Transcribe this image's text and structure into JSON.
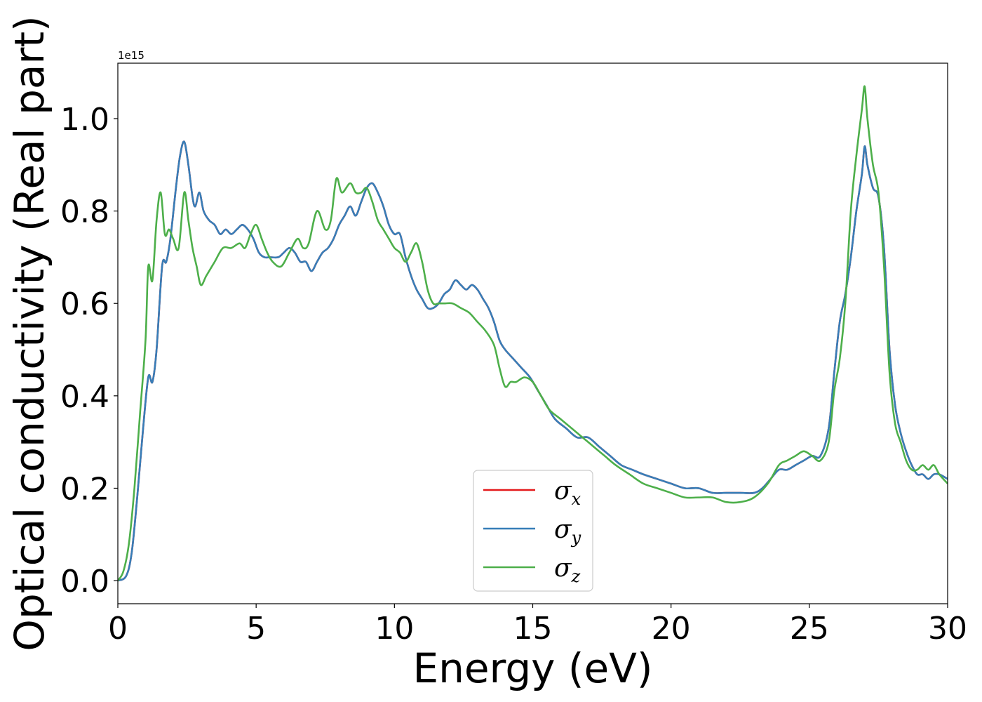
{
  "chart_data": {
    "type": "line",
    "xlabel": "Energy (eV)",
    "ylabel": "Optical conductivity (Real part)",
    "y_offset_text": "1e15",
    "y_scale": 1000000000000000.0,
    "xlim": [
      0,
      30
    ],
    "ylim": [
      -0.05,
      1.12
    ],
    "xticks": [
      0,
      5,
      10,
      15,
      20,
      25,
      30
    ],
    "yticks": [
      0.0,
      0.2,
      0.4,
      0.6,
      0.8,
      1.0
    ],
    "ytick_labels": [
      "0.0",
      "0.2",
      "0.4",
      "0.6",
      "0.8",
      "1.0"
    ],
    "grid": false,
    "legend_position": "bottom-center",
    "series": [
      {
        "name": "σx",
        "symbol": "σ",
        "sub": "x",
        "color": "#e41a1c",
        "x": [
          0,
          0.3,
          0.5,
          0.7,
          0.9,
          1.1,
          1.25,
          1.4,
          1.6,
          1.75,
          1.9,
          2.1,
          2.25,
          2.4,
          2.55,
          2.7,
          2.8,
          2.95,
          3.1,
          3.3,
          3.5,
          3.7,
          3.9,
          4.1,
          4.3,
          4.5,
          4.7,
          4.9,
          5.1,
          5.3,
          5.5,
          5.8,
          6.0,
          6.2,
          6.4,
          6.6,
          6.8,
          7.0,
          7.2,
          7.4,
          7.6,
          7.8,
          8.0,
          8.2,
          8.4,
          8.6,
          8.8,
          9.0,
          9.2,
          9.4,
          9.6,
          9.8,
          10.0,
          10.2,
          10.4,
          10.6,
          10.8,
          11.0,
          11.2,
          11.4,
          11.6,
          11.8,
          12.0,
          12.2,
          12.4,
          12.6,
          12.8,
          13.0,
          13.2,
          13.4,
          13.6,
          13.8,
          14.0,
          14.3,
          14.6,
          14.9,
          15.2,
          15.5,
          15.8,
          16.2,
          16.6,
          17.0,
          17.4,
          17.8,
          18.2,
          18.6,
          19.0,
          19.5,
          20.0,
          20.5,
          21.0,
          21.5,
          22.0,
          22.5,
          23.0,
          23.3,
          23.6,
          23.9,
          24.2,
          24.5,
          24.8,
          25.1,
          25.4,
          25.7,
          25.9,
          26.1,
          26.3,
          26.5,
          26.7,
          26.9,
          27.0,
          27.1,
          27.3,
          27.5,
          27.7,
          27.9,
          28.1,
          28.3,
          28.5,
          28.7,
          28.9,
          29.1,
          29.3,
          29.5,
          29.7,
          30.0
        ],
        "y": [
          0.0,
          0.01,
          0.06,
          0.18,
          0.32,
          0.44,
          0.43,
          0.5,
          0.68,
          0.69,
          0.74,
          0.85,
          0.92,
          0.95,
          0.9,
          0.83,
          0.81,
          0.84,
          0.8,
          0.78,
          0.77,
          0.75,
          0.76,
          0.75,
          0.76,
          0.77,
          0.76,
          0.74,
          0.71,
          0.7,
          0.7,
          0.7,
          0.71,
          0.72,
          0.71,
          0.69,
          0.69,
          0.67,
          0.69,
          0.71,
          0.72,
          0.74,
          0.77,
          0.79,
          0.81,
          0.79,
          0.82,
          0.85,
          0.86,
          0.84,
          0.81,
          0.77,
          0.75,
          0.75,
          0.7,
          0.66,
          0.63,
          0.61,
          0.59,
          0.59,
          0.6,
          0.62,
          0.63,
          0.65,
          0.64,
          0.63,
          0.64,
          0.63,
          0.61,
          0.59,
          0.56,
          0.52,
          0.5,
          0.48,
          0.46,
          0.44,
          0.41,
          0.38,
          0.35,
          0.33,
          0.31,
          0.31,
          0.29,
          0.27,
          0.25,
          0.24,
          0.23,
          0.22,
          0.21,
          0.2,
          0.2,
          0.19,
          0.19,
          0.19,
          0.19,
          0.2,
          0.22,
          0.24,
          0.24,
          0.25,
          0.26,
          0.27,
          0.27,
          0.33,
          0.45,
          0.56,
          0.62,
          0.7,
          0.8,
          0.88,
          0.94,
          0.9,
          0.85,
          0.83,
          0.72,
          0.5,
          0.38,
          0.32,
          0.28,
          0.25,
          0.23,
          0.23,
          0.22,
          0.23,
          0.23,
          0.22
        ]
      },
      {
        "name": "σy",
        "symbol": "σ",
        "sub": "y",
        "color": "#377eb8",
        "x": [
          0,
          0.3,
          0.5,
          0.7,
          0.9,
          1.1,
          1.25,
          1.4,
          1.6,
          1.75,
          1.9,
          2.1,
          2.25,
          2.4,
          2.55,
          2.7,
          2.8,
          2.95,
          3.1,
          3.3,
          3.5,
          3.7,
          3.9,
          4.1,
          4.3,
          4.5,
          4.7,
          4.9,
          5.1,
          5.3,
          5.5,
          5.8,
          6.0,
          6.2,
          6.4,
          6.6,
          6.8,
          7.0,
          7.2,
          7.4,
          7.6,
          7.8,
          8.0,
          8.2,
          8.4,
          8.6,
          8.8,
          9.0,
          9.2,
          9.4,
          9.6,
          9.8,
          10.0,
          10.2,
          10.4,
          10.6,
          10.8,
          11.0,
          11.2,
          11.4,
          11.6,
          11.8,
          12.0,
          12.2,
          12.4,
          12.6,
          12.8,
          13.0,
          13.2,
          13.4,
          13.6,
          13.8,
          14.0,
          14.3,
          14.6,
          14.9,
          15.2,
          15.5,
          15.8,
          16.2,
          16.6,
          17.0,
          17.4,
          17.8,
          18.2,
          18.6,
          19.0,
          19.5,
          20.0,
          20.5,
          21.0,
          21.5,
          22.0,
          22.5,
          23.0,
          23.3,
          23.6,
          23.9,
          24.2,
          24.5,
          24.8,
          25.1,
          25.4,
          25.7,
          25.9,
          26.1,
          26.3,
          26.5,
          26.7,
          26.9,
          27.0,
          27.1,
          27.3,
          27.5,
          27.7,
          27.9,
          28.1,
          28.3,
          28.5,
          28.7,
          28.9,
          29.1,
          29.3,
          29.5,
          29.7,
          30.0
        ],
        "y": [
          0.0,
          0.01,
          0.06,
          0.18,
          0.32,
          0.44,
          0.43,
          0.5,
          0.68,
          0.69,
          0.74,
          0.85,
          0.92,
          0.95,
          0.9,
          0.83,
          0.81,
          0.84,
          0.8,
          0.78,
          0.77,
          0.75,
          0.76,
          0.75,
          0.76,
          0.77,
          0.76,
          0.74,
          0.71,
          0.7,
          0.7,
          0.7,
          0.71,
          0.72,
          0.71,
          0.69,
          0.69,
          0.67,
          0.69,
          0.71,
          0.72,
          0.74,
          0.77,
          0.79,
          0.81,
          0.79,
          0.82,
          0.85,
          0.86,
          0.84,
          0.81,
          0.77,
          0.75,
          0.75,
          0.7,
          0.66,
          0.63,
          0.61,
          0.59,
          0.59,
          0.6,
          0.62,
          0.63,
          0.65,
          0.64,
          0.63,
          0.64,
          0.63,
          0.61,
          0.59,
          0.56,
          0.52,
          0.5,
          0.48,
          0.46,
          0.44,
          0.41,
          0.38,
          0.35,
          0.33,
          0.31,
          0.31,
          0.29,
          0.27,
          0.25,
          0.24,
          0.23,
          0.22,
          0.21,
          0.2,
          0.2,
          0.19,
          0.19,
          0.19,
          0.19,
          0.2,
          0.22,
          0.24,
          0.24,
          0.25,
          0.26,
          0.27,
          0.27,
          0.33,
          0.45,
          0.56,
          0.62,
          0.7,
          0.8,
          0.88,
          0.94,
          0.9,
          0.85,
          0.83,
          0.72,
          0.5,
          0.38,
          0.32,
          0.28,
          0.25,
          0.23,
          0.23,
          0.22,
          0.23,
          0.23,
          0.22
        ]
      },
      {
        "name": "σz",
        "symbol": "σ",
        "sub": "z",
        "color": "#4daf4a",
        "x": [
          0,
          0.2,
          0.4,
          0.6,
          0.8,
          1.0,
          1.1,
          1.25,
          1.4,
          1.55,
          1.7,
          1.85,
          2.0,
          2.2,
          2.4,
          2.55,
          2.7,
          2.85,
          3.0,
          3.2,
          3.5,
          3.8,
          4.1,
          4.4,
          4.6,
          4.8,
          5.0,
          5.2,
          5.4,
          5.6,
          5.9,
          6.2,
          6.5,
          6.7,
          6.9,
          7.2,
          7.5,
          7.7,
          7.9,
          8.1,
          8.4,
          8.6,
          8.8,
          9.0,
          9.2,
          9.4,
          9.6,
          9.8,
          10.0,
          10.2,
          10.4,
          10.6,
          10.8,
          11.0,
          11.2,
          11.4,
          11.6,
          11.8,
          12.1,
          12.4,
          12.7,
          13.0,
          13.3,
          13.6,
          13.8,
          14.0,
          14.2,
          14.4,
          14.7,
          15.0,
          15.3,
          15.6,
          16.0,
          16.4,
          16.8,
          17.2,
          17.6,
          18.0,
          18.5,
          19.0,
          19.5,
          20.0,
          20.5,
          21.0,
          21.5,
          22.0,
          22.5,
          23.0,
          23.5,
          23.9,
          24.2,
          24.5,
          24.8,
          25.1,
          25.4,
          25.7,
          25.9,
          26.1,
          26.3,
          26.5,
          26.7,
          26.9,
          27.0,
          27.1,
          27.3,
          27.5,
          27.7,
          27.9,
          28.1,
          28.3,
          28.5,
          28.7,
          28.9,
          29.1,
          29.3,
          29.5,
          29.7,
          30.0
        ],
        "y": [
          0.0,
          0.02,
          0.08,
          0.2,
          0.36,
          0.52,
          0.68,
          0.65,
          0.78,
          0.84,
          0.75,
          0.76,
          0.74,
          0.72,
          0.84,
          0.78,
          0.72,
          0.68,
          0.64,
          0.66,
          0.69,
          0.72,
          0.72,
          0.73,
          0.72,
          0.75,
          0.77,
          0.74,
          0.71,
          0.69,
          0.68,
          0.71,
          0.74,
          0.72,
          0.73,
          0.8,
          0.76,
          0.78,
          0.87,
          0.84,
          0.86,
          0.84,
          0.84,
          0.85,
          0.82,
          0.78,
          0.76,
          0.74,
          0.72,
          0.71,
          0.69,
          0.71,
          0.73,
          0.69,
          0.63,
          0.6,
          0.6,
          0.6,
          0.6,
          0.59,
          0.58,
          0.56,
          0.54,
          0.51,
          0.46,
          0.42,
          0.43,
          0.43,
          0.44,
          0.43,
          0.4,
          0.37,
          0.35,
          0.33,
          0.31,
          0.29,
          0.27,
          0.25,
          0.23,
          0.21,
          0.2,
          0.19,
          0.18,
          0.18,
          0.18,
          0.17,
          0.17,
          0.18,
          0.21,
          0.25,
          0.26,
          0.27,
          0.28,
          0.27,
          0.26,
          0.3,
          0.41,
          0.48,
          0.6,
          0.8,
          0.92,
          1.02,
          1.07,
          1.0,
          0.9,
          0.84,
          0.68,
          0.45,
          0.34,
          0.3,
          0.26,
          0.24,
          0.24,
          0.25,
          0.24,
          0.25,
          0.23,
          0.21
        ]
      }
    ]
  }
}
